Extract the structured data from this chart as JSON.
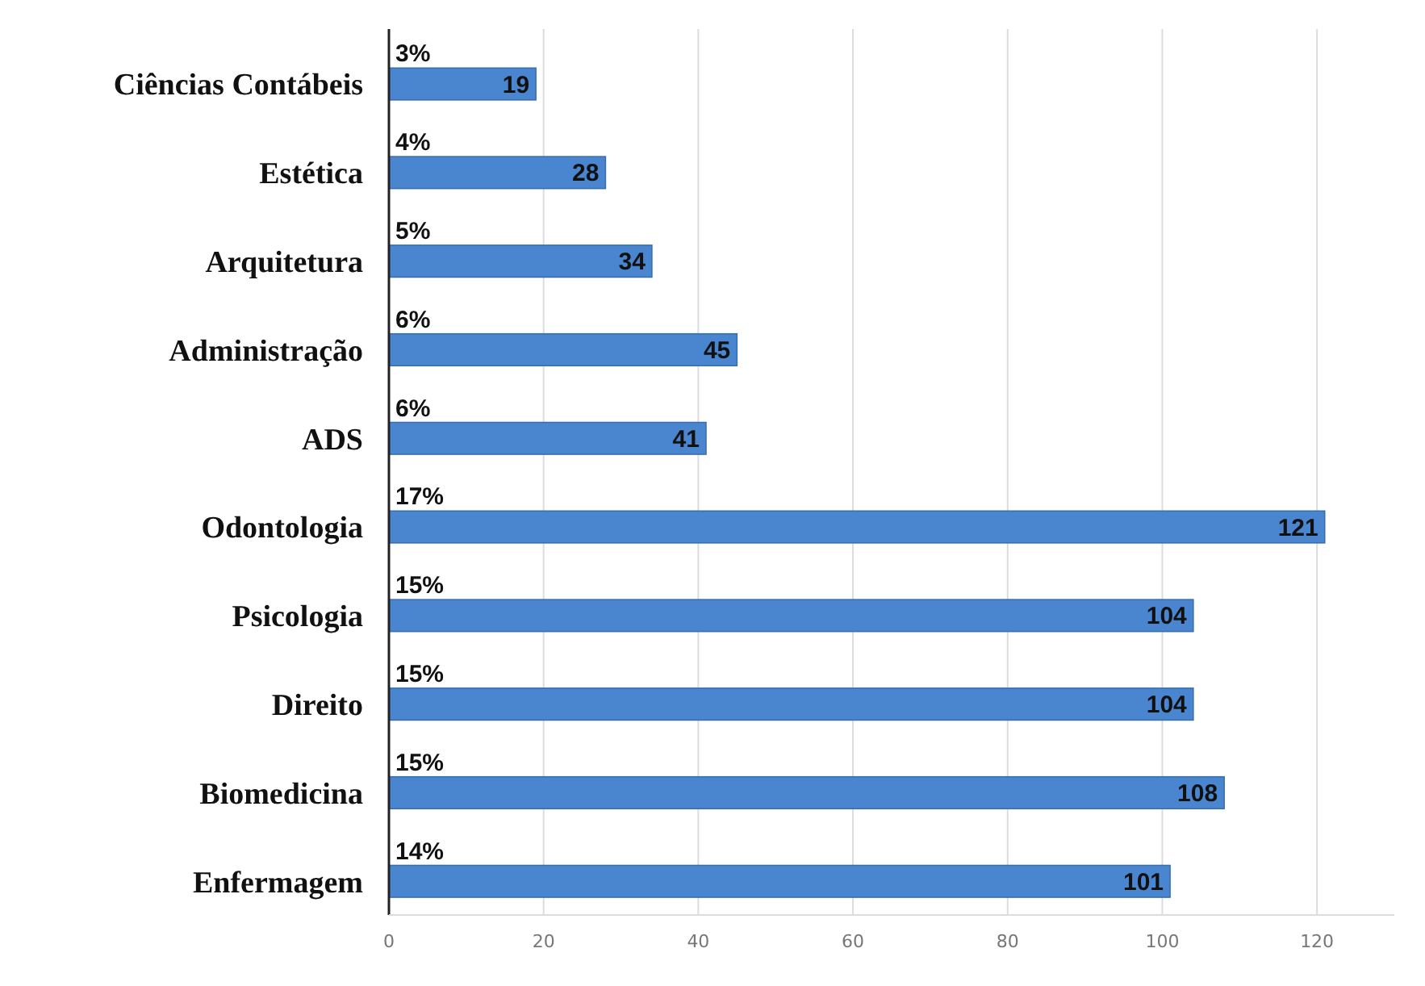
{
  "chart_data": {
    "type": "bar",
    "orientation": "horizontal",
    "categories": [
      "Ciências Contábeis",
      "Estética",
      "Arquitetura",
      "Administração",
      "ADS",
      "Odontologia",
      "Psicologia",
      "Direito",
      "Biomedicina",
      "Enfermagem"
    ],
    "values": [
      19,
      28,
      34,
      45,
      41,
      121,
      104,
      104,
      108,
      101
    ],
    "color": "#4a86d0",
    "data_labels": true,
    "xlim": [
      0,
      130
    ],
    "xticks": [
      0,
      20,
      40,
      60,
      80,
      100,
      120
    ],
    "grid": "x",
    "annotations": [
      "3%",
      "4%",
      "5%",
      "6%",
      "6%",
      "17%",
      "15%",
      "15%",
      "15%",
      "14%"
    ]
  }
}
